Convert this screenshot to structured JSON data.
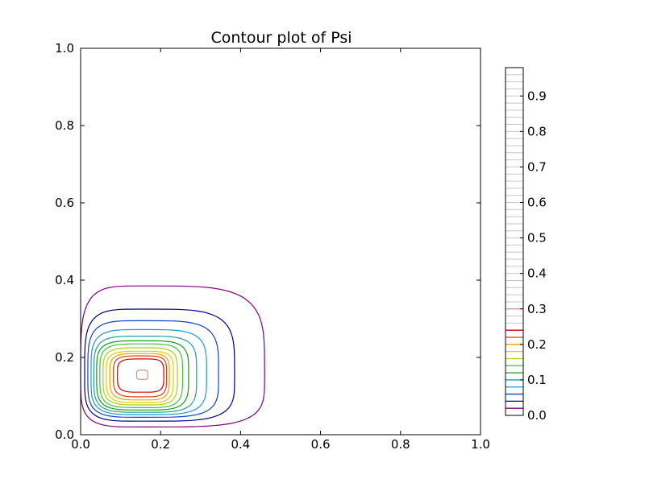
{
  "chart_data": {
    "type": "contour",
    "title": "Contour plot of Psi",
    "xlabel": "",
    "ylabel": "",
    "xlim": [
      0.0,
      1.0
    ],
    "ylim": [
      0.0,
      1.0
    ],
    "x_ticks": [
      "0.0",
      "0.2",
      "0.4",
      "0.6",
      "0.8",
      "1.0"
    ],
    "y_ticks": [
      "0.0",
      "0.2",
      "0.4",
      "0.6",
      "0.8",
      "1.0"
    ],
    "grid": false,
    "center": [
      0.155,
      0.155
    ],
    "levels": [
      {
        "value": 0.02,
        "color": "#800080",
        "extent": {
          "x": [
            0.0,
            0.46
          ],
          "y": [
            0.02,
            0.385
          ]
        }
      },
      {
        "value": 0.04,
        "color": "#00008b",
        "extent": {
          "x": [
            0.01,
            0.385
          ],
          "y": [
            0.035,
            0.325
          ]
        }
      },
      {
        "value": 0.06,
        "color": "#1040d0",
        "extent": {
          "x": [
            0.018,
            0.345
          ],
          "y": [
            0.045,
            0.295
          ]
        }
      },
      {
        "value": 0.08,
        "color": "#1a9ad0",
        "extent": {
          "x": [
            0.026,
            0.315
          ],
          "y": [
            0.052,
            0.272
          ]
        }
      },
      {
        "value": 0.1,
        "color": "#20a0a0",
        "extent": {
          "x": [
            0.033,
            0.29
          ],
          "y": [
            0.058,
            0.255
          ]
        }
      },
      {
        "value": 0.12,
        "color": "#10a010",
        "extent": {
          "x": [
            0.04,
            0.27
          ],
          "y": [
            0.064,
            0.243
          ]
        }
      },
      {
        "value": 0.14,
        "color": "#40c040",
        "extent": {
          "x": [
            0.048,
            0.255
          ],
          "y": [
            0.07,
            0.235
          ]
        }
      },
      {
        "value": 0.16,
        "color": "#b0d000",
        "extent": {
          "x": [
            0.056,
            0.242
          ],
          "y": [
            0.077,
            0.225
          ]
        }
      },
      {
        "value": 0.18,
        "color": "#e0d000",
        "extent": {
          "x": [
            0.064,
            0.232
          ],
          "y": [
            0.083,
            0.216
          ]
        }
      },
      {
        "value": 0.2,
        "color": "#f0a000",
        "extent": {
          "x": [
            0.073,
            0.222
          ],
          "y": [
            0.09,
            0.21
          ]
        }
      },
      {
        "value": 0.22,
        "color": "#e04000",
        "extent": {
          "x": [
            0.082,
            0.215
          ],
          "y": [
            0.098,
            0.204
          ]
        }
      },
      {
        "value": 0.24,
        "color": "#d00000",
        "extent": {
          "x": [
            0.092,
            0.208
          ],
          "y": [
            0.11,
            0.196
          ]
        }
      },
      {
        "value": 0.3,
        "color": "#d09090",
        "extent": {
          "x": [
            0.14,
            0.168
          ],
          "y": [
            0.143,
            0.167
          ]
        }
      }
    ],
    "colorbar": {
      "range": [
        0.0,
        0.98
      ],
      "ticks": [
        "0.0",
        "0.1",
        "0.2",
        "0.3",
        "0.4",
        "0.5",
        "0.6",
        "0.7",
        "0.8",
        "0.9"
      ],
      "line_step": 0.02,
      "colored_lines": [
        {
          "value": 0.02,
          "color": "#800080"
        },
        {
          "value": 0.04,
          "color": "#00008b"
        },
        {
          "value": 0.06,
          "color": "#1040d0"
        },
        {
          "value": 0.08,
          "color": "#1a9ad0"
        },
        {
          "value": 0.1,
          "color": "#20a0a0"
        },
        {
          "value": 0.12,
          "color": "#10a010"
        },
        {
          "value": 0.14,
          "color": "#40c040"
        },
        {
          "value": 0.16,
          "color": "#b0d000"
        },
        {
          "value": 0.18,
          "color": "#e0d000"
        },
        {
          "value": 0.2,
          "color": "#f0a000"
        },
        {
          "value": 0.22,
          "color": "#e04000"
        },
        {
          "value": 0.24,
          "color": "#d00000"
        },
        {
          "value": 0.3,
          "color": "#d09090"
        }
      ],
      "inactive_color": "#c8c8c8"
    }
  }
}
